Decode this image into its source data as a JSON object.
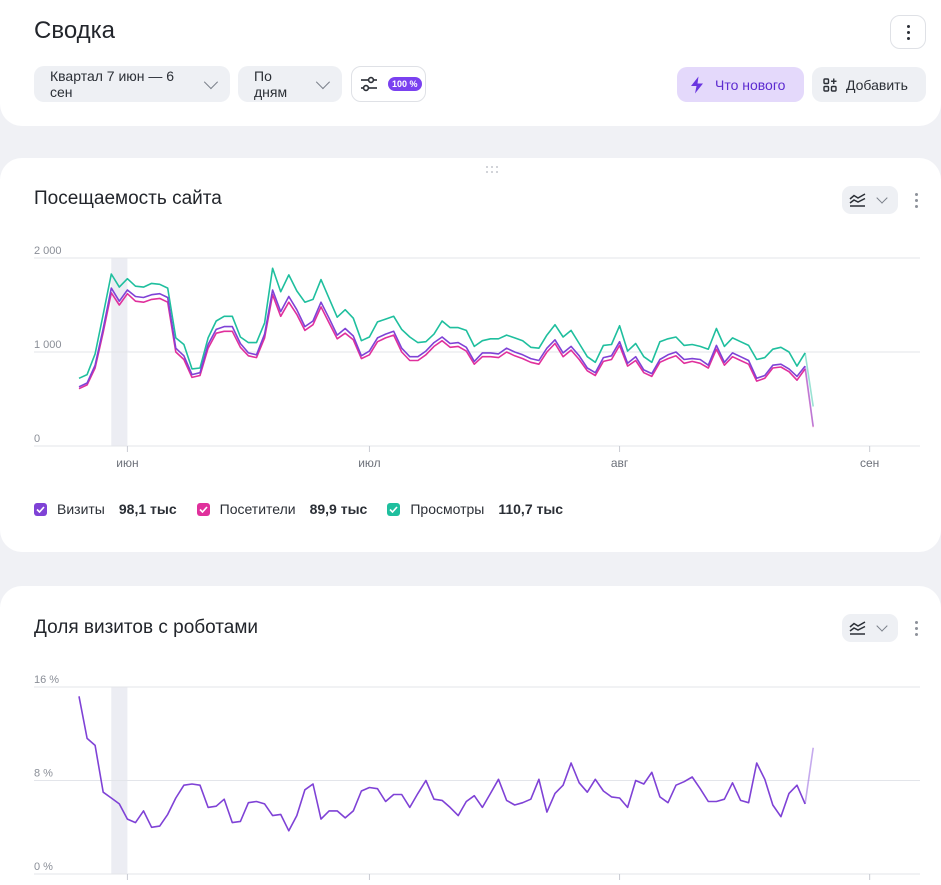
{
  "header": {
    "title": "Сводка",
    "period_label": "Квартал 7 июн — 6 сен",
    "grouping_label": "По дням",
    "filter_badge": "100 %",
    "whats_new_label": "Что нового",
    "add_label": "Добавить"
  },
  "colors": {
    "accent": "#7a41f0",
    "visits": "#7f42d6",
    "visitors": "#e0309c",
    "pageviews": "#1fbf9e",
    "selection_band": "#ecedf3"
  },
  "icons": [
    "more-vertical-icon",
    "chevron-down-icon",
    "sliders-icon",
    "lightning-icon",
    "add-widget-icon",
    "drag-handle-icon",
    "chart-type-icon",
    "check-icon"
  ],
  "traffic_widget": {
    "title": "Посещаемость сайта",
    "legend": [
      {
        "label": "Визиты",
        "value": "98,1 тыс"
      },
      {
        "label": "Посетители",
        "value": "89,9 тыс"
      },
      {
        "label": "Просмотры",
        "value": "110,7 тыс"
      }
    ]
  },
  "robots_widget": {
    "title": "Доля визитов с роботами"
  },
  "chart_data": [
    {
      "type": "line",
      "title": "Посещаемость сайта",
      "x_start": "2025-05-26",
      "x_end": "2025-09-06",
      "x_tick_labels": [
        {
          "date": "2025-06-01",
          "label": "июн"
        },
        {
          "date": "2025-07-01",
          "label": "июл"
        },
        {
          "date": "2025-08-01",
          "label": "авг"
        },
        {
          "date": "2025-09-01",
          "label": "сен"
        }
      ],
      "y_ticks": [
        {
          "value": 0,
          "label": "0"
        },
        {
          "value": 1000,
          "label": "1 000"
        },
        {
          "value": 2000,
          "label": "2 000"
        }
      ],
      "ylim": [
        0,
        2000
      ],
      "grid": true,
      "legend_position": "bottom",
      "highlight_band": [
        "2025-05-30",
        "2025-05-31"
      ],
      "series": [
        {
          "name": "Просмотры",
          "color": "#1fbf9e",
          "values": [
            720,
            760,
            980,
            1400,
            1830,
            1690,
            1780,
            1700,
            1690,
            1730,
            1720,
            1680,
            1150,
            1080,
            820,
            830,
            1150,
            1330,
            1380,
            1380,
            1160,
            1100,
            1100,
            1310,
            1890,
            1640,
            1820,
            1650,
            1530,
            1560,
            1770,
            1570,
            1370,
            1450,
            1360,
            1120,
            1160,
            1320,
            1350,
            1380,
            1240,
            1160,
            1100,
            1110,
            1190,
            1330,
            1260,
            1260,
            1230,
            1060,
            1120,
            1140,
            1140,
            1180,
            1150,
            1120,
            1050,
            1040,
            1180,
            1290,
            1160,
            1230,
            1090,
            950,
            890,
            1070,
            1080,
            1280,
            1010,
            1090,
            950,
            890,
            1110,
            1140,
            1160,
            1070,
            1080,
            1060,
            1030,
            1250,
            1060,
            1150,
            1110,
            1070,
            920,
            940,
            1030,
            1050,
            1000,
            850,
            990,
            420
          ]
        },
        {
          "name": "Визиты",
          "color": "#7f42d6",
          "values": [
            630,
            670,
            860,
            1250,
            1680,
            1540,
            1660,
            1590,
            1580,
            1610,
            1620,
            1580,
            1040,
            960,
            760,
            780,
            1080,
            1240,
            1270,
            1270,
            1090,
            990,
            970,
            1190,
            1660,
            1430,
            1590,
            1450,
            1270,
            1330,
            1530,
            1360,
            1180,
            1250,
            1170,
            960,
            1010,
            1150,
            1190,
            1220,
            1040,
            950,
            950,
            1010,
            1100,
            1160,
            1090,
            1100,
            1050,
            900,
            990,
            990,
            980,
            1040,
            1000,
            970,
            930,
            910,
            1040,
            1130,
            990,
            1060,
            960,
            830,
            780,
            940,
            960,
            1110,
            880,
            950,
            810,
            770,
            920,
            970,
            1000,
            920,
            930,
            920,
            860,
            1070,
            890,
            990,
            950,
            910,
            720,
            750,
            860,
            870,
            820,
            740,
            850,
            210
          ]
        },
        {
          "name": "Посетители",
          "color": "#e0309c",
          "values": [
            610,
            650,
            830,
            1210,
            1630,
            1500,
            1620,
            1540,
            1530,
            1560,
            1570,
            1530,
            1000,
            920,
            730,
            750,
            1040,
            1200,
            1220,
            1220,
            1050,
            960,
            940,
            1150,
            1610,
            1380,
            1530,
            1400,
            1230,
            1290,
            1480,
            1310,
            1140,
            1200,
            1130,
            930,
            970,
            1110,
            1150,
            1180,
            1000,
            910,
            910,
            970,
            1060,
            1120,
            1050,
            1060,
            1010,
            870,
            950,
            950,
            940,
            1000,
            960,
            930,
            890,
            870,
            1000,
            1090,
            950,
            1020,
            920,
            800,
            750,
            900,
            920,
            1070,
            850,
            910,
            780,
            740,
            890,
            930,
            960,
            880,
            900,
            880,
            830,
            1030,
            860,
            950,
            910,
            870,
            690,
            720,
            830,
            840,
            790,
            700,
            820,
            200
          ]
        }
      ]
    },
    {
      "type": "line",
      "title": "Доля визитов с роботами",
      "x_start": "2025-05-26",
      "x_end": "2025-09-06",
      "x_ticks_dates": [
        "2025-06-01",
        "2025-07-01",
        "2025-08-01",
        "2025-09-01"
      ],
      "y_ticks": [
        {
          "value": 0,
          "label": "0 %"
        },
        {
          "value": 8,
          "label": "8 %"
        },
        {
          "value": 16,
          "label": "16 %"
        }
      ],
      "ylim": [
        0,
        16
      ],
      "grid": true,
      "highlight_band": [
        "2025-05-30",
        "2025-05-31"
      ],
      "series": [
        {
          "color": "#7f42d6",
          "values": [
            15.2,
            11.6,
            11.0,
            7.0,
            6.5,
            6.0,
            4.7,
            4.4,
            5.4,
            4.0,
            4.1,
            5.1,
            6.5,
            7.6,
            7.7,
            7.6,
            5.7,
            5.8,
            6.4,
            4.4,
            4.5,
            6.1,
            6.2,
            6.0,
            5.0,
            5.1,
            3.7,
            5.0,
            7.2,
            7.7,
            4.7,
            5.4,
            5.4,
            4.8,
            5.4,
            7.1,
            7.4,
            7.3,
            6.2,
            6.8,
            6.8,
            5.7,
            6.9,
            8.0,
            6.4,
            6.3,
            5.7,
            5.0,
            6.2,
            6.7,
            5.7,
            6.9,
            8.1,
            6.3,
            5.9,
            6.1,
            6.4,
            8.1,
            5.3,
            6.9,
            7.6,
            9.5,
            7.8,
            7.0,
            8.1,
            7.1,
            6.6,
            6.5,
            5.7,
            8.0,
            7.7,
            8.7,
            6.6,
            6.1,
            7.6,
            7.9,
            8.3,
            7.3,
            6.2,
            6.2,
            6.4,
            7.8,
            6.3,
            6.1,
            9.5,
            8.1,
            5.9,
            4.9,
            6.9,
            7.6,
            6.0,
            10.8
          ]
        }
      ]
    }
  ]
}
